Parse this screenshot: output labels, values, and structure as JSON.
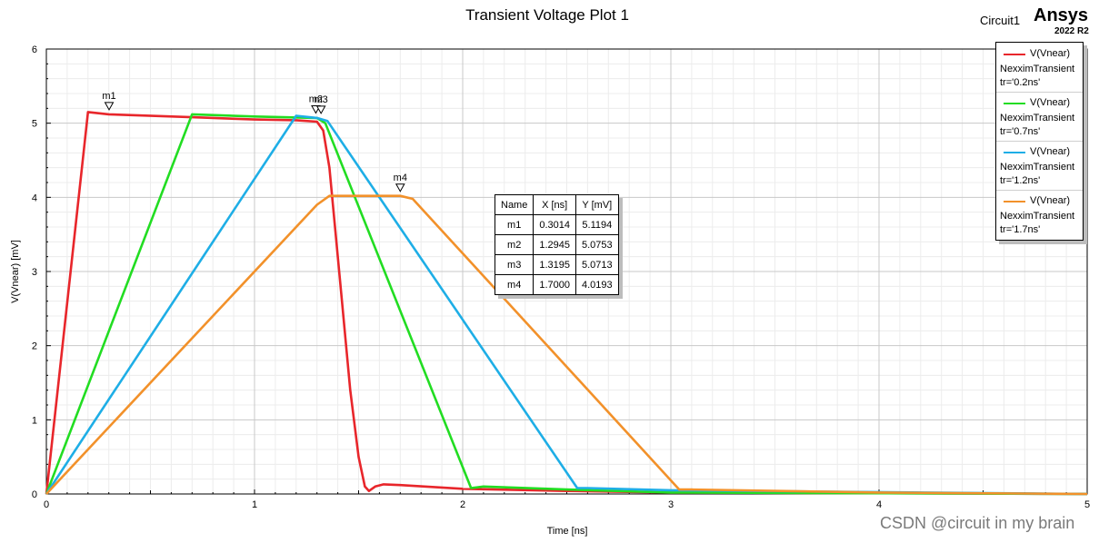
{
  "header": {
    "circuit": "Circuit1",
    "brand": "Ansys",
    "version": "2022 R2"
  },
  "watermark": "CSDN @circuit in my brain",
  "chart_data": {
    "type": "line",
    "title": "Transient Voltage Plot 1",
    "xlabel": "Time [ns]",
    "ylabel": "V(Vnear) [mV]",
    "xlim": [
      0,
      5
    ],
    "ylim": [
      0,
      6
    ],
    "xticks": [
      0,
      1,
      2,
      3,
      4,
      5
    ],
    "yticks": [
      0,
      1,
      2,
      3,
      4,
      5,
      6
    ],
    "grid": true,
    "legend_position": "top-right",
    "series": [
      {
        "name": "V(Vnear)",
        "sub1": "NexximTransient",
        "sub2": "tr='0.2ns'",
        "color": "#e8262b",
        "x": [
          0,
          0.2,
          0.3,
          0.7,
          1.0,
          1.2,
          1.3,
          1.33,
          1.36,
          1.38,
          1.42,
          1.46,
          1.5,
          1.53,
          1.55,
          1.58,
          1.62,
          1.7,
          2.0,
          2.5,
          3.0,
          5.0
        ],
        "y": [
          0,
          5.15,
          5.12,
          5.08,
          5.05,
          5.04,
          5.02,
          4.9,
          4.4,
          3.8,
          2.6,
          1.4,
          0.5,
          0.1,
          0.04,
          0.1,
          0.13,
          0.12,
          0.07,
          0.04,
          0.02,
          0
        ]
      },
      {
        "name": "V(Vnear)",
        "sub1": "NexximTransient",
        "sub2": "tr='0.7ns'",
        "color": "#22dd22",
        "x": [
          0,
          0.7,
          1.0,
          1.3,
          1.34,
          2.04,
          2.1,
          2.5,
          3.0,
          5.0
        ],
        "y": [
          0,
          5.12,
          5.09,
          5.07,
          5.0,
          0.08,
          0.1,
          0.06,
          0.02,
          0
        ]
      },
      {
        "name": "V(Vnear)",
        "sub1": "NexximTransient",
        "sub2": "tr='1.2ns'",
        "color": "#1eaee6",
        "x": [
          0,
          1.2,
          1.3,
          1.35,
          2.55,
          2.6,
          3.0,
          5.0
        ],
        "y": [
          0,
          5.1,
          5.07,
          5.03,
          0.08,
          0.08,
          0.05,
          0
        ]
      },
      {
        "name": "V(Vnear)",
        "sub1": "NexximTransient",
        "sub2": "tr='1.7ns'",
        "color": "#f2912a",
        "x": [
          0,
          1.3,
          1.36,
          1.7,
          1.76,
          3.04,
          3.1,
          4.0,
          5.0
        ],
        "y": [
          0,
          3.9,
          4.02,
          4.02,
          3.98,
          0.06,
          0.06,
          0.02,
          0
        ]
      }
    ],
    "markers": [
      {
        "name": "m1",
        "x": 0.3014,
        "y": 5.1194
      },
      {
        "name": "m2",
        "x": 1.2945,
        "y": 5.0753
      },
      {
        "name": "m3",
        "x": 1.3195,
        "y": 5.0713
      },
      {
        "name": "m4",
        "x": 1.7,
        "y": 4.0193
      }
    ],
    "marker_table": {
      "headers": [
        "Name",
        "X [ns]",
        "Y [mV]"
      ],
      "rows": [
        [
          "m1",
          "0.3014",
          "5.1194"
        ],
        [
          "m2",
          "1.2945",
          "5.0753"
        ],
        [
          "m3",
          "1.3195",
          "5.0713"
        ],
        [
          "m4",
          "1.7000",
          "4.0193"
        ]
      ]
    }
  }
}
